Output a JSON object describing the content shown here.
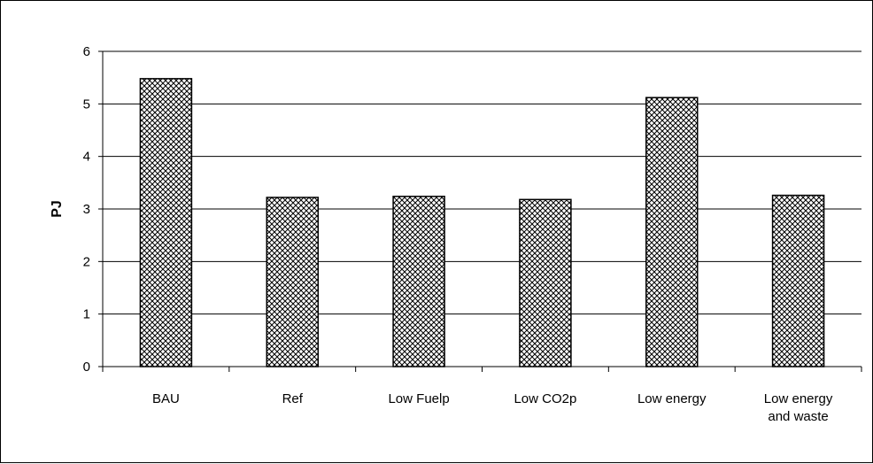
{
  "chart_data": {
    "type": "bar",
    "title": "",
    "xlabel": "",
    "ylabel": "PJ",
    "categories": [
      [
        "BAU"
      ],
      [
        "Ref"
      ],
      [
        "Low Fuelp"
      ],
      [
        "Low CO2p"
      ],
      [
        "Low energy"
      ],
      [
        "Low energy",
        "and waste"
      ]
    ],
    "values": [
      5.48,
      3.22,
      3.24,
      3.18,
      5.12,
      3.26
    ],
    "ylim": [
      0,
      6
    ],
    "yticks": [
      "0",
      "1",
      "2",
      "3",
      "4",
      "5",
      "6"
    ],
    "grid": true,
    "legend": "none",
    "bar_fill": "crosshatch",
    "colors": {
      "bar_stroke": "#000000",
      "gridline": "#000000",
      "background": "#ffffff"
    }
  }
}
